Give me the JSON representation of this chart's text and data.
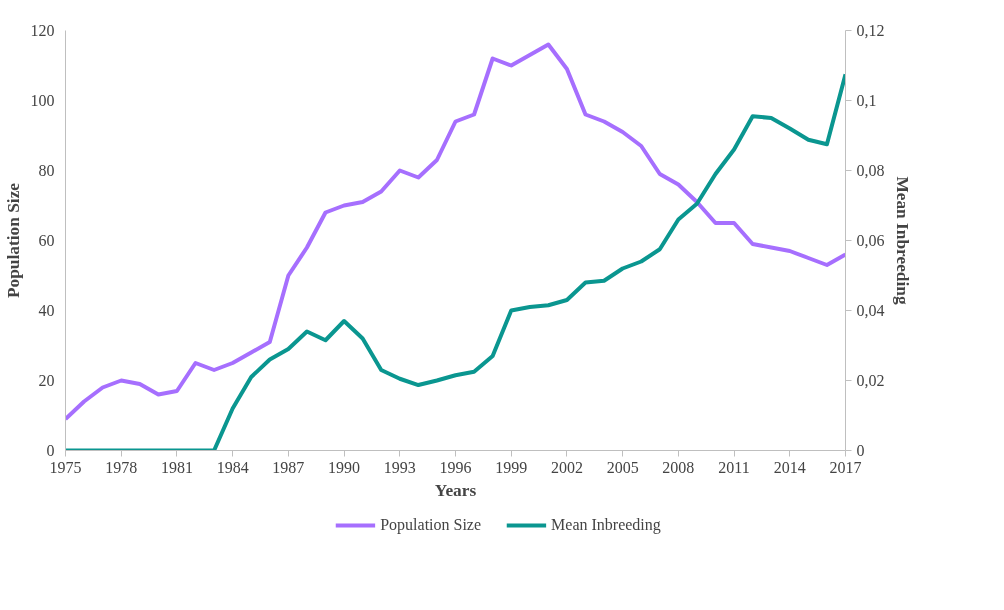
{
  "chart_data": {
    "type": "line",
    "xlabel": "Years",
    "ylabel": "Population Size",
    "y2label": "Mean Inbreeding",
    "x": [
      1975,
      1976,
      1977,
      1978,
      1979,
      1980,
      1981,
      1982,
      1983,
      1984,
      1985,
      1986,
      1987,
      1988,
      1989,
      1990,
      1991,
      1992,
      1993,
      1994,
      1995,
      1996,
      1997,
      1998,
      1999,
      2000,
      2001,
      2002,
      2003,
      2004,
      2005,
      2006,
      2007,
      2008,
      2009,
      2010,
      2011,
      2012,
      2013,
      2014,
      2015,
      2016,
      2017
    ],
    "series": [
      {
        "name": "Population Size",
        "color": "#a66ffe",
        "values": [
          9,
          14,
          18,
          20,
          19,
          16,
          17,
          25,
          23,
          25,
          28,
          31,
          50,
          58,
          68,
          70,
          71,
          74,
          80,
          78,
          83,
          94,
          96,
          112,
          110,
          113,
          116,
          109,
          96,
          94,
          91,
          87,
          79,
          76,
          71,
          65,
          65,
          59,
          58,
          57,
          55,
          53,
          56
        ]
      },
      {
        "name": "Mean Inbreeding",
        "color": "#0a9690",
        "axis": "y2",
        "values": [
          0,
          0,
          0,
          0,
          0,
          0,
          0,
          0,
          0,
          0.012,
          0.021,
          0.026,
          0.029,
          0.034,
          0.0315,
          0.037,
          0.032,
          0.023,
          0.0205,
          0.0187,
          0.02,
          0.0215,
          0.0225,
          0.027,
          0.04,
          0.041,
          0.0415,
          0.043,
          0.048,
          0.0485,
          0.052,
          0.054,
          0.0575,
          0.066,
          0.0705,
          0.079,
          0.086,
          0.0955,
          0.095,
          0.092,
          0.0888,
          0.0875,
          0.1075
        ]
      }
    ],
    "xlim": [
      1975,
      2017
    ],
    "xticks": [
      1975,
      1978,
      1981,
      1984,
      1987,
      1990,
      1993,
      1996,
      1999,
      2002,
      2005,
      2008,
      2011,
      2014,
      2017
    ],
    "ylim": [
      0,
      120
    ],
    "yticks": [
      0,
      20,
      40,
      60,
      80,
      100,
      120
    ],
    "y2lim": [
      0,
      0.12
    ],
    "y2ticks": [
      0,
      {
        "value": 0.02,
        "label": "0,02"
      },
      {
        "value": 0.04,
        "label": "0,04"
      },
      {
        "value": 0.06,
        "label": "0,06"
      },
      {
        "value": 0.08,
        "label": "0,08"
      },
      {
        "value": 0.1,
        "label": "0,1"
      },
      {
        "value": 0.12,
        "label": "0,12"
      }
    ],
    "grid": false,
    "legend": "bottom",
    "marker": "none",
    "line_style": "solid"
  }
}
